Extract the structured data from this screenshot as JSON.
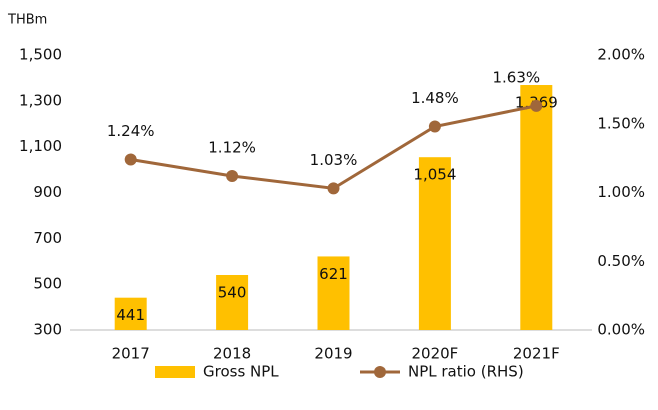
{
  "chart_data": {
    "type": "bar",
    "unit_label": "THBm",
    "categories": [
      "2017",
      "2018",
      "2019",
      "2020F",
      "2021F"
    ],
    "series": [
      {
        "name": "Gross NPL",
        "type": "bar",
        "color": "#FFC000",
        "values": [
          441,
          540,
          621,
          1054,
          1369
        ],
        "value_labels": [
          "441",
          "540",
          "621",
          "1,054",
          "1,369"
        ]
      },
      {
        "name": "NPL ratio (RHS)",
        "type": "line",
        "axis": "y2",
        "color": "#A0673A",
        "values": [
          1.24,
          1.12,
          1.03,
          1.48,
          1.63
        ],
        "value_labels": [
          "1.24%",
          "1.12%",
          "1.03%",
          "1.48%",
          "1.63%"
        ]
      }
    ],
    "ylim": [
      300,
      1500
    ],
    "yticks": [
      300,
      500,
      700,
      900,
      {
        "value": 1100,
        "label": "1,100"
      },
      {
        "value": 1300,
        "label": "1,300"
      },
      {
        "value": 1500,
        "label": "1,500"
      }
    ],
    "y2lim": [
      0,
      2
    ],
    "y2ticks": [
      {
        "value": 0,
        "label": "0.00%"
      },
      {
        "value": 0.5,
        "label": "0.50%"
      },
      {
        "value": 1,
        "label": "1.00%"
      },
      {
        "value": 1.5,
        "label": "1.50%"
      },
      {
        "value": 2,
        "label": "2.00%"
      }
    ],
    "grid": false,
    "legend": "bottom"
  }
}
